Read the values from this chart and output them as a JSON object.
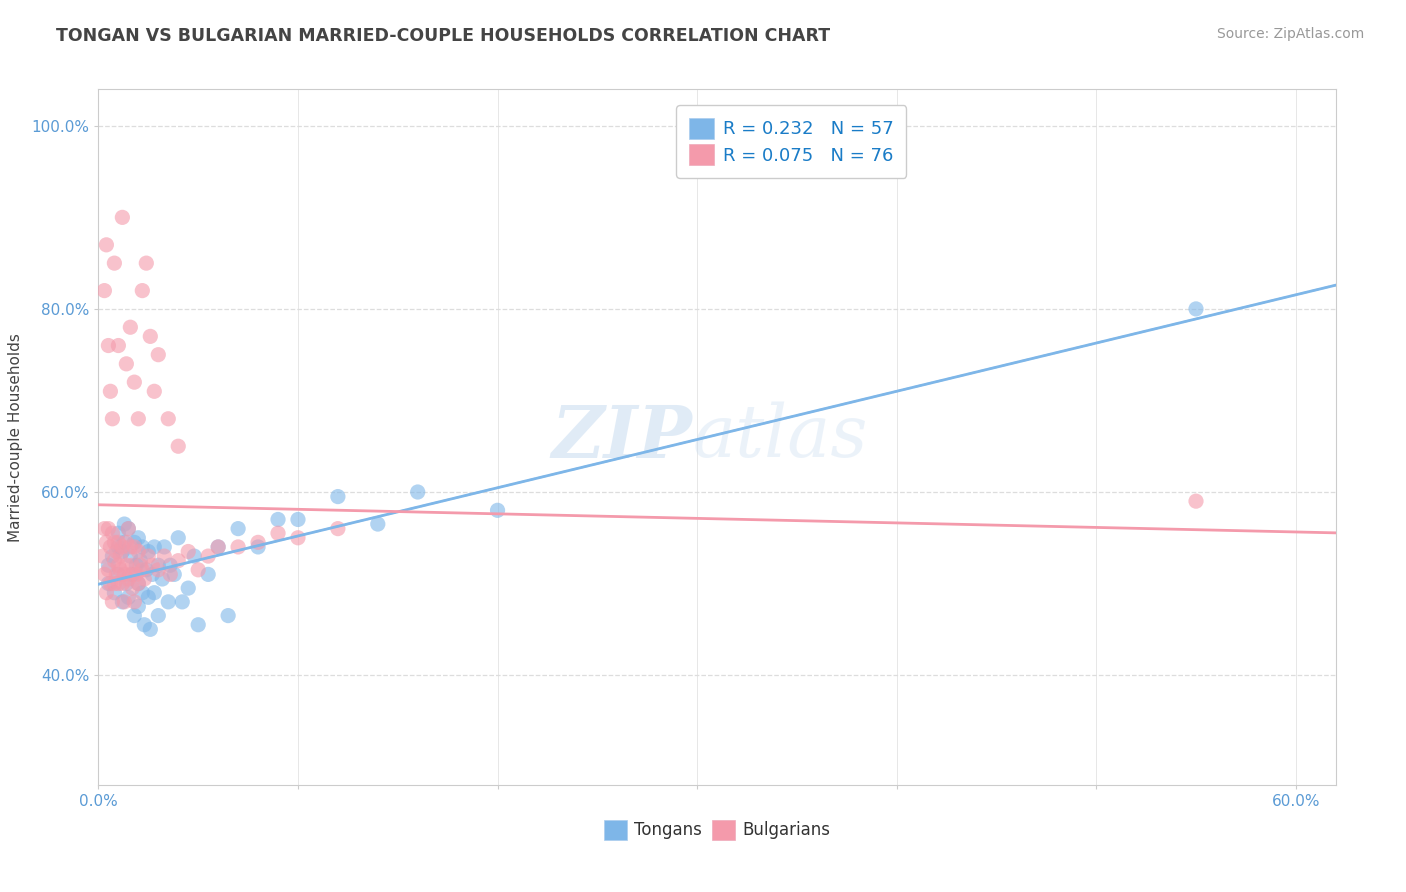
{
  "title": "TONGAN VS BULGARIAN MARRIED-COUPLE HOUSEHOLDS CORRELATION CHART",
  "source_text": "Source: ZipAtlas.com",
  "ylabel_label": "Married-couple Households",
  "xlim": [
    0.0,
    0.62
  ],
  "ylim": [
    0.28,
    1.04
  ],
  "color_tongan": "#7EB6E8",
  "color_bulgarian": "#F49AAB",
  "watermark_zip": "ZIP",
  "watermark_atlas": "atlas",
  "background_color": "#ffffff",
  "grid_color": "#dddddd",
  "title_color": "#444444",
  "axis_label_color": "#5B9BD5",
  "tick_color": "#5B9BD5",
  "R_tongan": 0.232,
  "N_tongan": 57,
  "R_bulgarian": 0.075,
  "N_bulgarian": 76,
  "tongan_x": [
    0.005,
    0.005,
    0.007,
    0.008,
    0.01,
    0.01,
    0.01,
    0.012,
    0.012,
    0.013,
    0.013,
    0.014,
    0.015,
    0.015,
    0.016,
    0.017,
    0.018,
    0.018,
    0.019,
    0.02,
    0.02,
    0.02,
    0.021,
    0.022,
    0.022,
    0.023,
    0.024,
    0.025,
    0.025,
    0.026,
    0.027,
    0.028,
    0.028,
    0.03,
    0.03,
    0.032,
    0.033,
    0.035,
    0.036,
    0.038,
    0.04,
    0.042,
    0.045,
    0.048,
    0.05,
    0.055,
    0.06,
    0.065,
    0.07,
    0.08,
    0.09,
    0.1,
    0.12,
    0.14,
    0.16,
    0.2,
    0.55
  ],
  "tongan_y": [
    0.52,
    0.5,
    0.53,
    0.49,
    0.54,
    0.51,
    0.555,
    0.535,
    0.48,
    0.565,
    0.545,
    0.5,
    0.485,
    0.56,
    0.53,
    0.51,
    0.545,
    0.465,
    0.52,
    0.55,
    0.5,
    0.475,
    0.525,
    0.54,
    0.49,
    0.455,
    0.515,
    0.535,
    0.485,
    0.45,
    0.51,
    0.54,
    0.49,
    0.52,
    0.465,
    0.505,
    0.54,
    0.48,
    0.52,
    0.51,
    0.55,
    0.48,
    0.495,
    0.53,
    0.455,
    0.51,
    0.54,
    0.465,
    0.56,
    0.54,
    0.57,
    0.57,
    0.595,
    0.565,
    0.6,
    0.58,
    0.8
  ],
  "bulgarian_x": [
    0.002,
    0.003,
    0.003,
    0.004,
    0.004,
    0.005,
    0.005,
    0.006,
    0.006,
    0.007,
    0.007,
    0.008,
    0.008,
    0.008,
    0.009,
    0.009,
    0.01,
    0.01,
    0.01,
    0.011,
    0.011,
    0.012,
    0.012,
    0.013,
    0.013,
    0.014,
    0.014,
    0.015,
    0.015,
    0.016,
    0.016,
    0.017,
    0.017,
    0.018,
    0.018,
    0.019,
    0.02,
    0.02,
    0.021,
    0.022,
    0.023,
    0.025,
    0.027,
    0.03,
    0.033,
    0.036,
    0.04,
    0.045,
    0.05,
    0.055,
    0.06,
    0.07,
    0.08,
    0.09,
    0.1,
    0.12,
    0.003,
    0.004,
    0.005,
    0.006,
    0.007,
    0.008,
    0.01,
    0.012,
    0.014,
    0.016,
    0.018,
    0.02,
    0.022,
    0.024,
    0.026,
    0.028,
    0.03,
    0.035,
    0.04,
    0.55
  ],
  "bulgarian_y": [
    0.53,
    0.51,
    0.56,
    0.49,
    0.545,
    0.515,
    0.56,
    0.5,
    0.54,
    0.48,
    0.555,
    0.525,
    0.545,
    0.5,
    0.535,
    0.51,
    0.52,
    0.5,
    0.545,
    0.53,
    0.515,
    0.54,
    0.5,
    0.51,
    0.48,
    0.545,
    0.52,
    0.505,
    0.56,
    0.51,
    0.54,
    0.495,
    0.52,
    0.48,
    0.54,
    0.51,
    0.535,
    0.5,
    0.52,
    0.515,
    0.505,
    0.53,
    0.52,
    0.515,
    0.53,
    0.51,
    0.525,
    0.535,
    0.515,
    0.53,
    0.54,
    0.54,
    0.545,
    0.555,
    0.55,
    0.56,
    0.82,
    0.87,
    0.76,
    0.71,
    0.68,
    0.85,
    0.76,
    0.9,
    0.74,
    0.78,
    0.72,
    0.68,
    0.82,
    0.85,
    0.77,
    0.71,
    0.75,
    0.68,
    0.65,
    0.59
  ]
}
